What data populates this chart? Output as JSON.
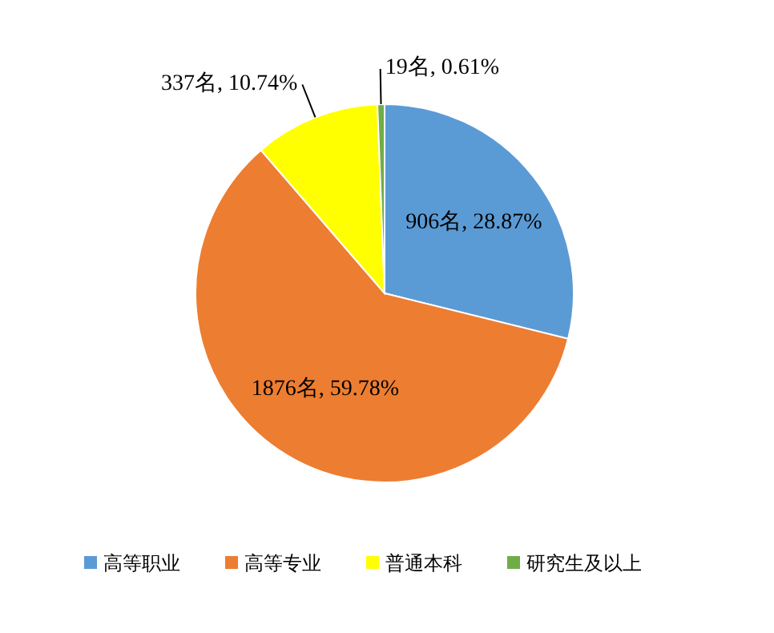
{
  "chart_data": {
    "type": "pie",
    "categories": [
      "高等职业",
      "高等专业",
      "普通本科",
      "研究生及以上"
    ],
    "values": [
      906,
      1876,
      337,
      19
    ],
    "value_labels": [
      "906名, 28.87%",
      "1876名, 59.78%",
      "337名, 10.74%",
      "19名, 0.61%"
    ],
    "colors": [
      "#5b9bd5",
      "#ed7d31",
      "#ffff00",
      "#70ad47"
    ],
    "legend": "bottom"
  }
}
